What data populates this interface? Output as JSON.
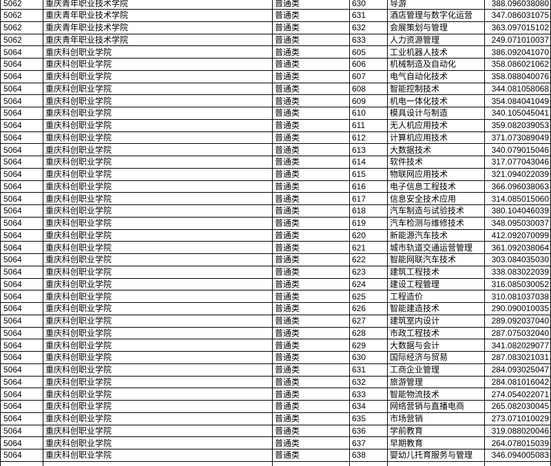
{
  "colors": {
    "background": "#ffffff",
    "table_border": "#000000",
    "text": "#000000"
  },
  "table": {
    "column_keys": [
      "code",
      "school",
      "category",
      "major_code",
      "major",
      "score"
    ],
    "rows": [
      {
        "code": "5062",
        "school": "重庆青年职业技术学院",
        "category": "普通类",
        "major_code": "630",
        "major": "导游",
        "score": "388.096038080"
      },
      {
        "code": "5062",
        "school": "重庆青年职业技术学院",
        "category": "普通类",
        "major_code": "631",
        "major": "酒店管理与数字化运营",
        "score": "347.086031075"
      },
      {
        "code": "5062",
        "school": "重庆青年职业技术学院",
        "category": "普通类",
        "major_code": "632",
        "major": "会展策划与管理",
        "score": "363.097015102"
      },
      {
        "code": "5062",
        "school": "重庆青年职业技术学院",
        "category": "普通类",
        "major_code": "633",
        "major": "人力资源管理",
        "score": "249.071010037"
      },
      {
        "code": "5064",
        "school": "重庆科创职业学院",
        "category": "普通类",
        "major_code": "605",
        "major": "工业机器人技术",
        "score": "386.092041070"
      },
      {
        "code": "5064",
        "school": "重庆科创职业学院",
        "category": "普通类",
        "major_code": "606",
        "major": "机械制造及自动化",
        "score": "358.086021062"
      },
      {
        "code": "5064",
        "school": "重庆科创职业学院",
        "category": "普通类",
        "major_code": "607",
        "major": "电气自动化技术",
        "score": "358.088040076"
      },
      {
        "code": "5064",
        "school": "重庆科创职业学院",
        "category": "普通类",
        "major_code": "608",
        "major": "智能控制技术",
        "score": "344.081058068"
      },
      {
        "code": "5064",
        "school": "重庆科创职业学院",
        "category": "普通类",
        "major_code": "609",
        "major": "机电一体化技术",
        "score": "354.084041049"
      },
      {
        "code": "5064",
        "school": "重庆科创职业学院",
        "category": "普通类",
        "major_code": "610",
        "major": "模具设计与制造",
        "score": "340.105045041"
      },
      {
        "code": "5064",
        "school": "重庆科创职业学院",
        "category": "普通类",
        "major_code": "611",
        "major": "无人机应用技术",
        "score": "359.082039053"
      },
      {
        "code": "5064",
        "school": "重庆科创职业学院",
        "category": "普通类",
        "major_code": "612",
        "major": "计算机应用技术",
        "score": "371.073089049"
      },
      {
        "code": "5064",
        "school": "重庆科创职业学院",
        "category": "普通类",
        "major_code": "613",
        "major": "大数据技术",
        "score": "340.079015046"
      },
      {
        "code": "5064",
        "school": "重庆科创职业学院",
        "category": "普通类",
        "major_code": "614",
        "major": "软件技术",
        "score": "317.077043046"
      },
      {
        "code": "5064",
        "school": "重庆科创职业学院",
        "category": "普通类",
        "major_code": "615",
        "major": "物联网应用技术",
        "score": "321.094022039"
      },
      {
        "code": "5064",
        "school": "重庆科创职业学院",
        "category": "普通类",
        "major_code": "616",
        "major": "电子信息工程技术",
        "score": "366.096038063"
      },
      {
        "code": "5064",
        "school": "重庆科创职业学院",
        "category": "普通类",
        "major_code": "617",
        "major": "信息安全技术应用",
        "score": "314.085015060"
      },
      {
        "code": "5064",
        "school": "重庆科创职业学院",
        "category": "普通类",
        "major_code": "618",
        "major": "汽车制造与试验技术",
        "score": "380.104046039"
      },
      {
        "code": "5064",
        "school": "重庆科创职业学院",
        "category": "普通类",
        "major_code": "619",
        "major": "汽车检测与维修技术",
        "score": "348.095030037"
      },
      {
        "code": "5064",
        "school": "重庆科创职业学院",
        "category": "普通类",
        "major_code": "620",
        "major": "新能源汽车技术",
        "score": "412.092070099"
      },
      {
        "code": "5064",
        "school": "重庆科创职业学院",
        "category": "普通类",
        "major_code": "621",
        "major": "城市轨道交通运营管理",
        "score": "361.092038064"
      },
      {
        "code": "5064",
        "school": "重庆科创职业学院",
        "category": "普通类",
        "major_code": "622",
        "major": "智能网联汽车技术",
        "score": "303.084035030"
      },
      {
        "code": "5064",
        "school": "重庆科创职业学院",
        "category": "普通类",
        "major_code": "623",
        "major": "建筑工程技术",
        "score": "338.083022039"
      },
      {
        "code": "5064",
        "school": "重庆科创职业学院",
        "category": "普通类",
        "major_code": "624",
        "major": "建设工程管理",
        "score": "316.085030052"
      },
      {
        "code": "5064",
        "school": "重庆科创职业学院",
        "category": "普通类",
        "major_code": "625",
        "major": "工程造价",
        "score": "310.081037038"
      },
      {
        "code": "5064",
        "school": "重庆科创职业学院",
        "category": "普通类",
        "major_code": "626",
        "major": "智能建造技术",
        "score": "290.090010035"
      },
      {
        "code": "5064",
        "school": "重庆科创职业学院",
        "category": "普通类",
        "major_code": "627",
        "major": "建筑室内设计",
        "score": "289.092037040"
      },
      {
        "code": "5064",
        "school": "重庆科创职业学院",
        "category": "普通类",
        "major_code": "628",
        "major": "市政工程技术",
        "score": "287.075032040"
      },
      {
        "code": "5064",
        "school": "重庆科创职业学院",
        "category": "普通类",
        "major_code": "629",
        "major": "大数据与会计",
        "score": "341.082029077"
      },
      {
        "code": "5064",
        "school": "重庆科创职业学院",
        "category": "普通类",
        "major_code": "630",
        "major": "国际经济与贸易",
        "score": "287.083021031"
      },
      {
        "code": "5064",
        "school": "重庆科创职业学院",
        "category": "普通类",
        "major_code": "631",
        "major": "工商企业管理",
        "score": "284.093025047"
      },
      {
        "code": "5064",
        "school": "重庆科创职业学院",
        "category": "普通类",
        "major_code": "632",
        "major": "旅游管理",
        "score": "284.081016042"
      },
      {
        "code": "5064",
        "school": "重庆科创职业学院",
        "category": "普通类",
        "major_code": "633",
        "major": "智能物流技术",
        "score": "274.054022071"
      },
      {
        "code": "5064",
        "school": "重庆科创职业学院",
        "category": "普通类",
        "major_code": "634",
        "major": "网络营销与直播电商",
        "score": "265.082030045"
      },
      {
        "code": "5064",
        "school": "重庆科创职业学院",
        "category": "普通类",
        "major_code": "635",
        "major": "市场营销",
        "score": "273.071010029"
      },
      {
        "code": "5064",
        "school": "重庆科创职业学院",
        "category": "普通类",
        "major_code": "636",
        "major": "学前教育",
        "score": "319.088020046"
      },
      {
        "code": "5064",
        "school": "重庆科创职业学院",
        "category": "普通类",
        "major_code": "637",
        "major": "早期教育",
        "score": "264.078015039"
      },
      {
        "code": "5064",
        "school": "重庆科创职业学院",
        "category": "普通类",
        "major_code": "638",
        "major": "婴幼儿托育服务与管理",
        "score": "346.094005083"
      },
      {
        "code": "",
        "school": "",
        "category": "",
        "major_code": "",
        "major": "",
        "score": ""
      }
    ]
  }
}
